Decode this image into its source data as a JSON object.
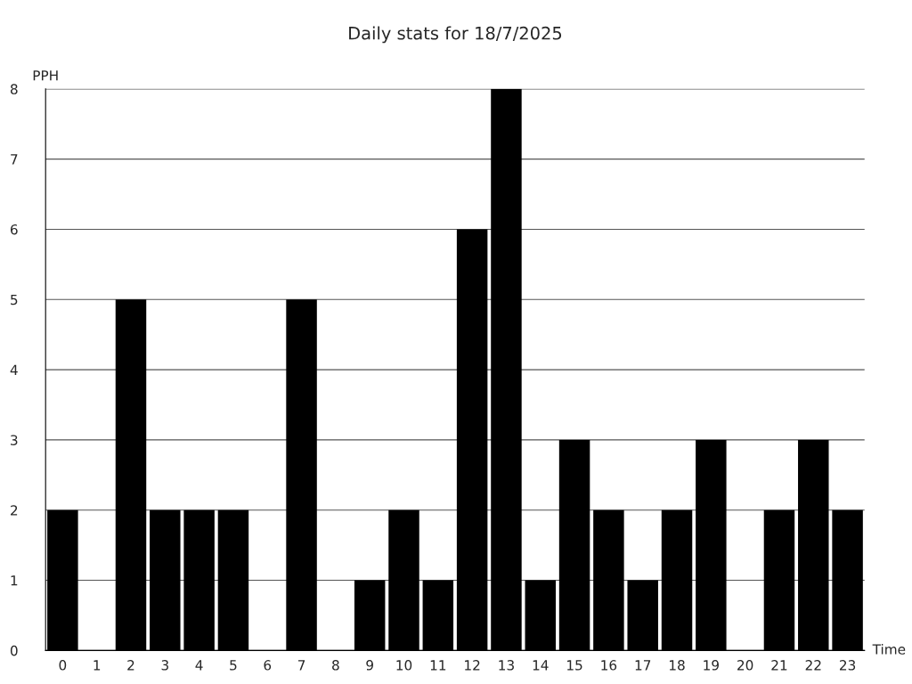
{
  "chart_data": {
    "type": "bar",
    "title": "Daily stats for 18/7/2025",
    "xlabel": "Time",
    "ylabel": "PPH",
    "categories": [
      "0",
      "1",
      "2",
      "3",
      "4",
      "5",
      "6",
      "7",
      "8",
      "9",
      "10",
      "11",
      "12",
      "13",
      "14",
      "15",
      "16",
      "17",
      "18",
      "19",
      "20",
      "21",
      "22",
      "23"
    ],
    "values": [
      2,
      0,
      5,
      2,
      2,
      2,
      0,
      5,
      0,
      1,
      2,
      1,
      6,
      8,
      1,
      3,
      2,
      1,
      2,
      3,
      0,
      2,
      3,
      2
    ],
    "color": "#000000",
    "ylim": [
      0,
      8
    ],
    "yticks": [
      0,
      1,
      2,
      3,
      4,
      5,
      6,
      7,
      8
    ],
    "grid": "y",
    "legend": false
  }
}
